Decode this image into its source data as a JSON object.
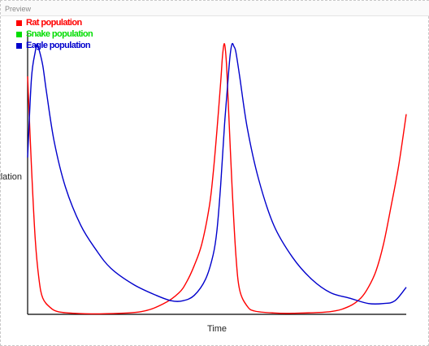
{
  "preview": {
    "title": "Preview"
  },
  "chart_data": {
    "type": "line",
    "xlabel": "Time",
    "ylabel": "Population",
    "ylabel_visible": "ulation",
    "legend_position": "top-left",
    "grid": false,
    "xlim": [
      0,
      1
    ],
    "ylim": [
      0,
      1
    ],
    "series": [
      {
        "name": "Rat population",
        "color": "#ff0000",
        "x": [
          0,
          0.01,
          0.02,
          0.03,
          0.04,
          0.06,
          0.08,
          0.12,
          0.2,
          0.3,
          0.36,
          0.4,
          0.42,
          0.44,
          0.46,
          0.48,
          0.49,
          0.5,
          0.51,
          0.515,
          0.52,
          0.525,
          0.53,
          0.54,
          0.55,
          0.56,
          0.58,
          0.6,
          0.65,
          0.7,
          0.8,
          0.85,
          0.88,
          0.9,
          0.92,
          0.94,
          0.96,
          0.98,
          1
        ],
        "values": [
          0.88,
          0.55,
          0.28,
          0.13,
          0.06,
          0.025,
          0.01,
          0.004,
          0.002,
          0.01,
          0.04,
          0.08,
          0.12,
          0.18,
          0.26,
          0.4,
          0.52,
          0.68,
          0.86,
          0.96,
          1.0,
          0.93,
          0.78,
          0.47,
          0.22,
          0.09,
          0.03,
          0.012,
          0.005,
          0.004,
          0.01,
          0.03,
          0.06,
          0.1,
          0.16,
          0.26,
          0.4,
          0.55,
          0.74
        ]
      },
      {
        "name": "Snake population",
        "color": "#00dd00",
        "x": [],
        "values": []
      },
      {
        "name": "Eagle population",
        "color": "#0000cc",
        "x": [
          0,
          0.01,
          0.02,
          0.025,
          0.03,
          0.04,
          0.05,
          0.07,
          0.1,
          0.14,
          0.18,
          0.22,
          0.28,
          0.34,
          0.38,
          0.41,
          0.44,
          0.47,
          0.49,
          0.5,
          0.51,
          0.52,
          0.53,
          0.535,
          0.54,
          0.545,
          0.55,
          0.56,
          0.58,
          0.61,
          0.65,
          0.7,
          0.75,
          0.8,
          0.85,
          0.9,
          0.94,
          0.97,
          1
        ],
        "values": [
          0.58,
          0.87,
          0.97,
          1.0,
          0.98,
          0.92,
          0.82,
          0.64,
          0.47,
          0.33,
          0.24,
          0.17,
          0.11,
          0.07,
          0.05,
          0.05,
          0.07,
          0.13,
          0.22,
          0.31,
          0.48,
          0.7,
          0.88,
          0.96,
          1.0,
          0.99,
          0.97,
          0.88,
          0.69,
          0.5,
          0.33,
          0.21,
          0.13,
          0.08,
          0.06,
          0.04,
          0.04,
          0.05,
          0.1
        ]
      }
    ]
  }
}
